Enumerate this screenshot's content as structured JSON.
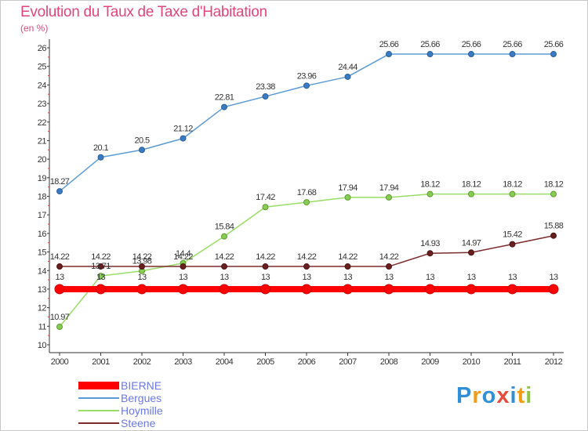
{
  "title": "Evolution du Taux de Taxe d'Habitation",
  "unit_label": "(en %)",
  "brand": {
    "text": "Proxiti",
    "letters": [
      "P",
      "r",
      "o",
      "x",
      "i",
      "t",
      "i"
    ],
    "colors": [
      "#2f8fd8",
      "#f39c12",
      "#2f8fd8",
      "#e74c3c",
      "#2f8fd8",
      "#f39c12",
      "#8cc63f"
    ]
  },
  "chart_data": {
    "type": "line",
    "title": "Evolution du Taux de Taxe d'Habitation",
    "xlabel": "",
    "ylabel": "(en %)",
    "ylim": [
      10,
      26
    ],
    "yticks": [
      "10",
      "11",
      "12",
      "13",
      "14",
      "15",
      "16",
      "17",
      "18",
      "19",
      "20",
      "21",
      "22",
      "23",
      "24",
      "25",
      "26"
    ],
    "x": [
      "2000",
      "2001",
      "2002",
      "2003",
      "2004",
      "2005",
      "2006",
      "2007",
      "2008",
      "2009",
      "2010",
      "2011",
      "2012"
    ],
    "grid": false,
    "legend_position": "bottom-left",
    "series": [
      {
        "name": "BIERNE",
        "color": "#ff0000",
        "values": [
          13,
          13,
          13,
          13,
          13,
          13,
          13,
          13,
          13,
          13,
          13,
          13,
          13
        ],
        "labels": [
          "13",
          "13",
          "13",
          "13",
          "13",
          "13",
          "13",
          "13",
          "13",
          "13",
          "13",
          "13",
          "13"
        ]
      },
      {
        "name": "Bergues",
        "color": "#5b9bd5",
        "values": [
          18.27,
          20.1,
          20.5,
          21.12,
          22.81,
          23.38,
          23.96,
          24.44,
          25.66,
          25.66,
          25.66,
          25.66,
          25.66
        ],
        "labels": [
          "18.27",
          "20.1",
          "20.5",
          "21.12",
          "22.81",
          "23.38",
          "23.96",
          "24.44",
          "25.66",
          "25.66",
          "25.66",
          "25.66",
          "25.66"
        ]
      },
      {
        "name": "Hoymille",
        "color": "#99dd66",
        "values": [
          10.97,
          13.71,
          13.98,
          14.4,
          15.84,
          17.42,
          17.68,
          17.94,
          17.94,
          18.12,
          18.12,
          18.12,
          18.12
        ],
        "labels": [
          "10.97",
          "13.71",
          "13.98",
          "14.4",
          "15.84",
          "17.42",
          "17.68",
          "17.94",
          "17.94",
          "18.12",
          "18.12",
          "18.12",
          "18.12"
        ]
      },
      {
        "name": "Steene",
        "color": "#7b2b2b",
        "values": [
          14.22,
          14.22,
          14.22,
          14.22,
          14.22,
          14.22,
          14.22,
          14.22,
          14.22,
          14.93,
          14.97,
          15.42,
          15.88
        ],
        "labels": [
          "14.22",
          "14.22",
          "14.22",
          "14.22",
          "14.22",
          "14.22",
          "14.22",
          "14.22",
          "14.22",
          "14.93",
          "14.97",
          "15.42",
          "15.88"
        ]
      }
    ]
  }
}
